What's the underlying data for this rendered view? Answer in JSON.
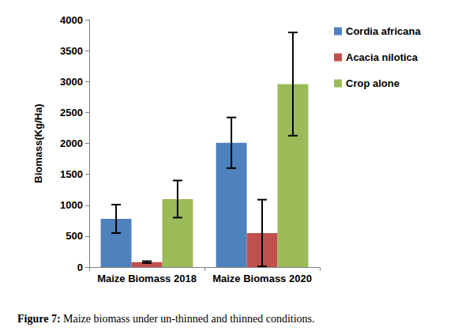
{
  "chart_data": {
    "type": "bar",
    "caption": "Figure 7: Maize biomass under un-thinned and thinned conditions.",
    "ylabel": "Biomass(Kg/Ha)",
    "categories": [
      "Maize Biomass 2018",
      "Maize Biomass 2020"
    ],
    "series": [
      {
        "name": "Cordia africana",
        "color": "#4f81bd",
        "values": [
          780,
          2010
        ],
        "errors": [
          230,
          410
        ]
      },
      {
        "name": "Acacia nilotica",
        "color": "#c0504d",
        "values": [
          80,
          550
        ],
        "errors": [
          15,
          540
        ]
      },
      {
        "name": "Crop alone",
        "color": "#9bbb59",
        "values": [
          1100,
          2960
        ],
        "errors": [
          300,
          835
        ]
      }
    ],
    "ylim": [
      0,
      4000
    ],
    "yticks": [
      0,
      500,
      1000,
      1500,
      2000,
      2500,
      3000,
      3500,
      4000
    ],
    "grid": false,
    "legend": "right"
  }
}
